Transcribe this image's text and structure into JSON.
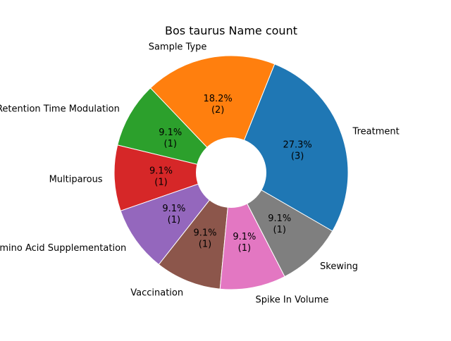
{
  "chart_data": {
    "type": "pie",
    "title": "Bos taurus Name count",
    "donut": true,
    "start_angle_deg": -30,
    "direction": "counterclockwise",
    "categories": [
      "Treatment",
      "Sample Type",
      "Retention Time Modulation",
      "Multiparous",
      "Amino Acid Supplementation",
      "Vaccination",
      "Spike In Volume",
      "Skewing"
    ],
    "values": [
      3,
      2,
      1,
      1,
      1,
      1,
      1,
      1
    ],
    "percent_labels": [
      "27.3%",
      "18.2%",
      "9.1%",
      "9.1%",
      "9.1%",
      "9.1%",
      "9.1%",
      "9.1%"
    ],
    "count_labels": [
      "(3)",
      "(2)",
      "(1)",
      "(1)",
      "(1)",
      "(1)",
      "(1)",
      "(1)"
    ],
    "colors": [
      "#1f77b4",
      "#ff7f0e",
      "#2ca02c",
      "#d62728",
      "#9467bd",
      "#8c564b",
      "#e377c2",
      "#7f7f7f"
    ],
    "legend": "none"
  }
}
